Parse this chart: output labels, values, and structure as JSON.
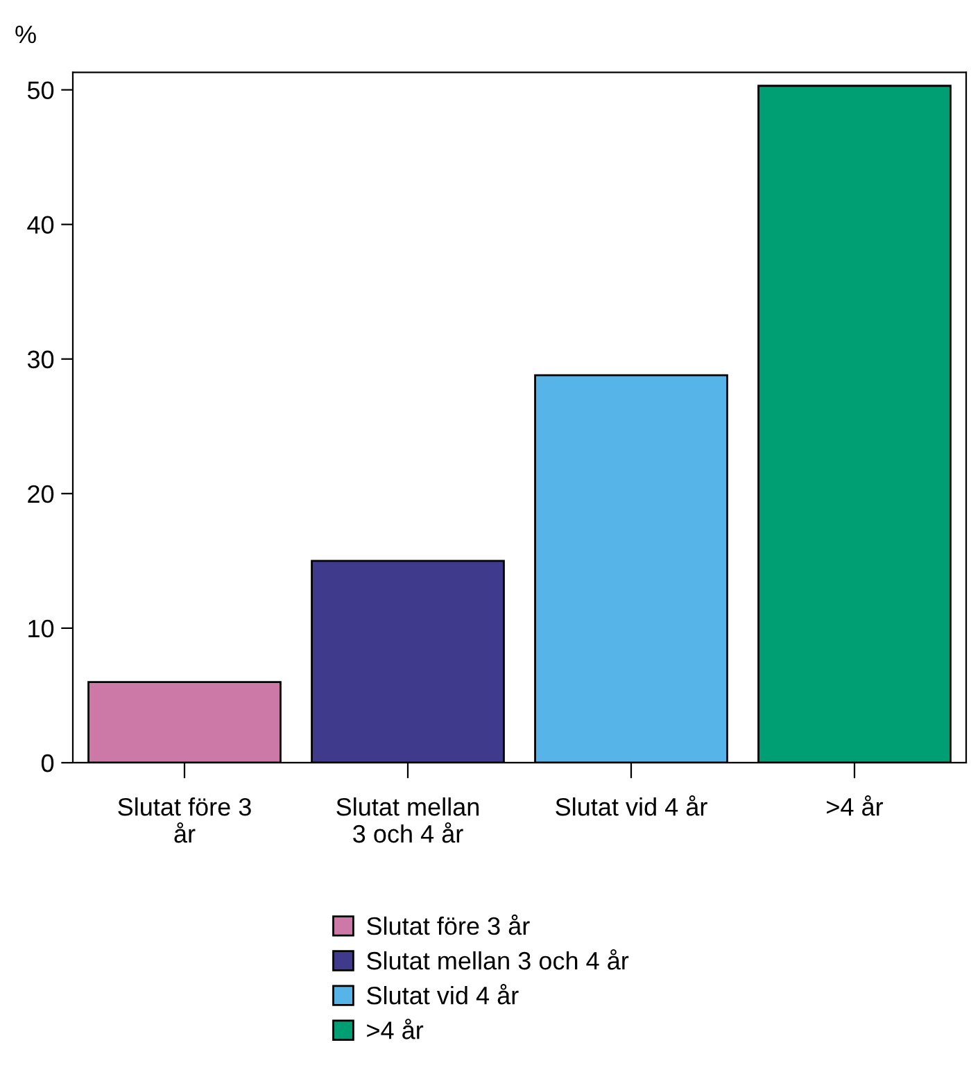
{
  "chart_data": {
    "type": "bar",
    "categories": [
      "Slutat före 3\når",
      "Slutat mellan\n3 och 4 år",
      "Slutat vid 4 år",
      ">4 år"
    ],
    "series": [
      {
        "name": "Slutat före 3 år",
        "color": "#cc79a7",
        "values": [
          6.0,
          null,
          null,
          null
        ]
      },
      {
        "name": "Slutat mellan 3 och 4 år",
        "color": "#3f3a8c",
        "values": [
          null,
          15.0,
          null,
          null
        ]
      },
      {
        "name": "Slutat vid 4 år",
        "color": "#56b4e9",
        "values": [
          null,
          null,
          28.8,
          null
        ]
      },
      {
        "name": ">4 år",
        "color": "#009e73",
        "values": [
          null,
          null,
          null,
          50.3
        ]
      }
    ],
    "ylabel": "%",
    "ylim": [
      0,
      51.3
    ],
    "yticks": [
      0,
      10,
      20,
      30,
      40,
      50
    ],
    "grid": false,
    "legend": "bottom"
  }
}
